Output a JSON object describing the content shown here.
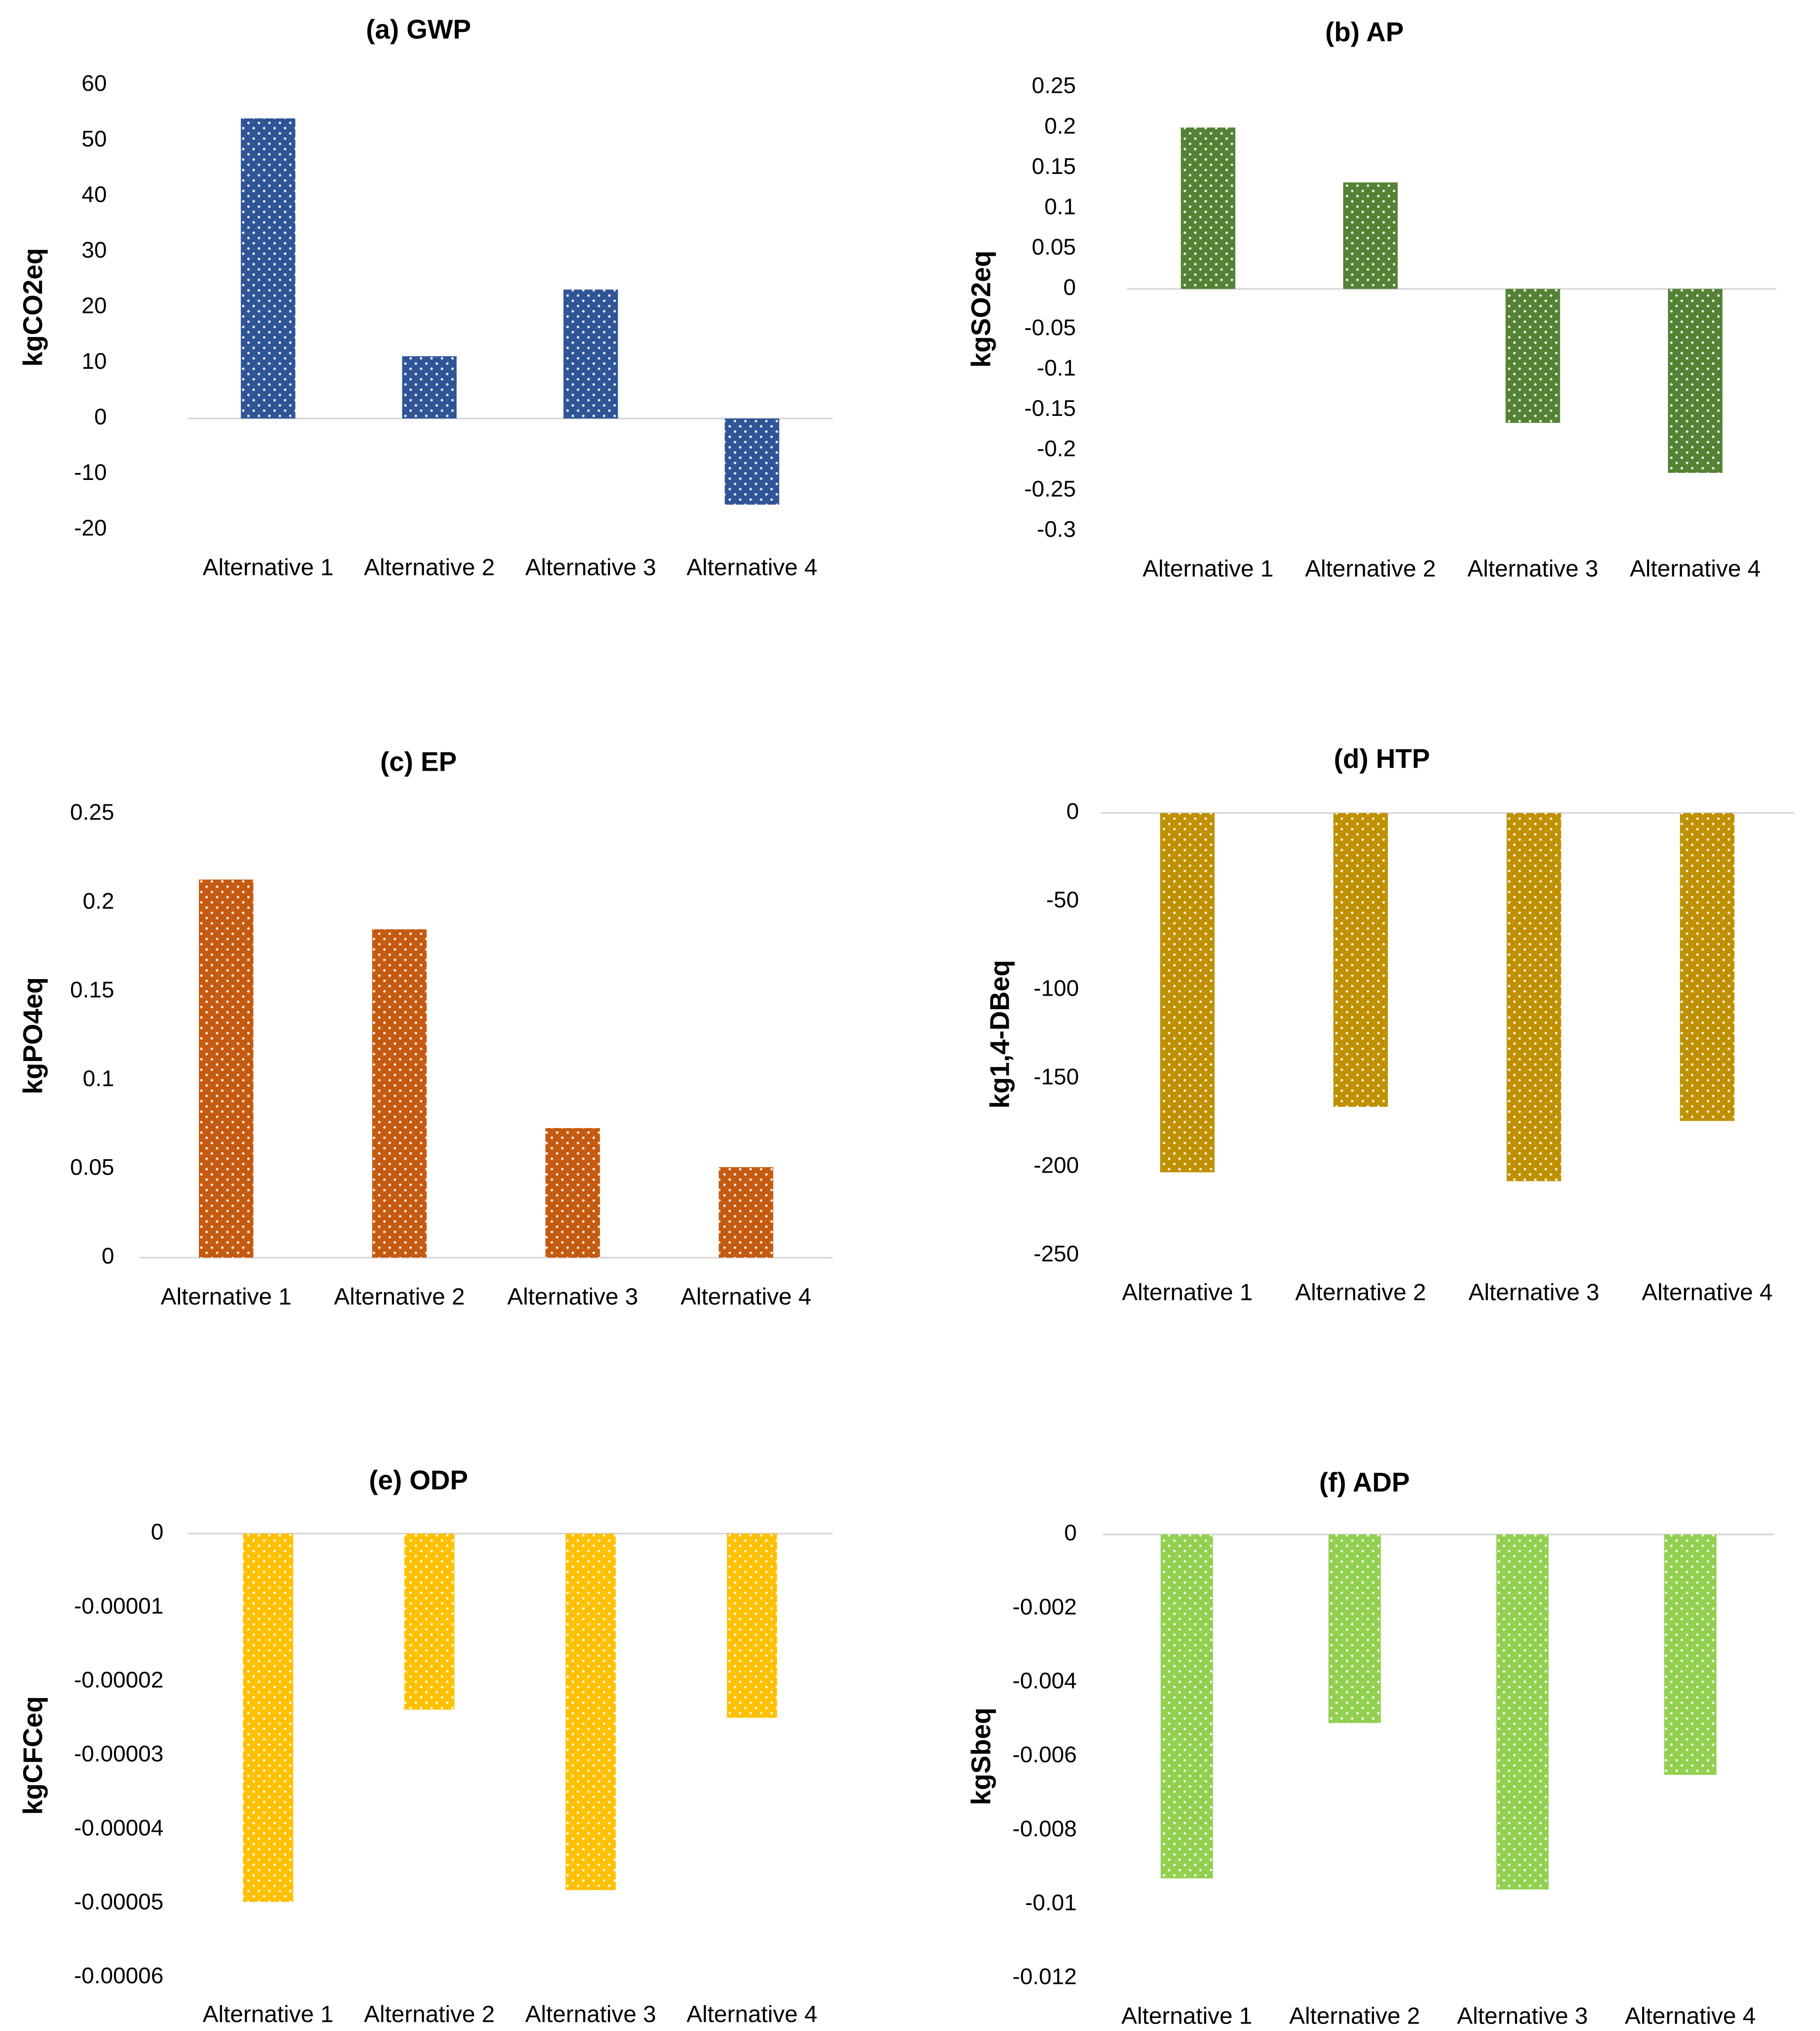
{
  "chart_data": [
    {
      "id": "gwp",
      "type": "bar",
      "title": "(a) GWP",
      "xlabel": "",
      "ylabel": "kgCO2eq",
      "categories": [
        "Alternative 1",
        "Alternative 2",
        "Alternative 3",
        "Alternative 4"
      ],
      "values": [
        54,
        11.2,
        23.2,
        -15.5
      ],
      "ylim": [
        -20,
        60
      ],
      "ticks": [
        60,
        50,
        40,
        30,
        20,
        10,
        0,
        -10,
        -20
      ],
      "tick_labels": [
        "60",
        "50",
        "40",
        "30",
        "20",
        "10",
        "0",
        "-10",
        "-20"
      ],
      "color": "#2f5597",
      "gridlines": false
    },
    {
      "id": "ap",
      "type": "bar",
      "title": "(b) AP",
      "xlabel": "",
      "ylabel": "kgSO2eq",
      "categories": [
        "Alternative 1",
        "Alternative 2",
        "Alternative 3",
        "Alternative 4"
      ],
      "values": [
        0.2,
        0.132,
        -0.166,
        -0.228
      ],
      "ylim": [
        -0.3,
        0.25
      ],
      "ticks": [
        0.25,
        0.2,
        0.15,
        0.1,
        0.05,
        0,
        -0.05,
        -0.1,
        -0.15,
        -0.2,
        -0.25,
        -0.3
      ],
      "tick_labels": [
        "0.25",
        "0.2",
        "0.15",
        "0.1",
        "0.05",
        "0",
        "-0.05",
        "-0.1",
        "-0.15",
        "-0.2",
        "-0.25",
        "-0.3"
      ],
      "color": "#548235",
      "gridlines": false
    },
    {
      "id": "ep",
      "type": "bar",
      "title": "(c) EP",
      "xlabel": "",
      "ylabel": "kgPO4eq",
      "categories": [
        "Alternative 1",
        "Alternative 2",
        "Alternative 3",
        "Alternative 4"
      ],
      "values": [
        0.213,
        0.185,
        0.073,
        0.051
      ],
      "ylim": [
        0,
        0.25
      ],
      "ticks": [
        0.25,
        0.2,
        0.15,
        0.1,
        0.05,
        0
      ],
      "tick_labels": [
        "0.25",
        "0.2",
        "0.15",
        "0.1",
        "0.05",
        "0"
      ],
      "color": "#c55a11",
      "gridlines": false
    },
    {
      "id": "htp",
      "type": "bar",
      "title": "(d) HTP",
      "xlabel": "",
      "ylabel": "kg1,4-DBeq",
      "categories": [
        "Alternative 1",
        "Alternative 2",
        "Alternative 3",
        "Alternative 4"
      ],
      "values": [
        -203,
        -166,
        -208,
        -174
      ],
      "ylim": [
        -250,
        0
      ],
      "ticks": [
        0,
        -50,
        -100,
        -150,
        -200,
        -250
      ],
      "tick_labels": [
        "0",
        "-50",
        "-100",
        "-150",
        "-200",
        "-250"
      ],
      "color": "#bf9000",
      "gridlines": false
    },
    {
      "id": "odp",
      "type": "bar",
      "title": "(e) ODP",
      "xlabel": "",
      "ylabel": "kgCFCeq",
      "categories": [
        "Alternative 1",
        "Alternative 2",
        "Alternative 3",
        "Alternative 4"
      ],
      "values": [
        -4.98e-05,
        -2.38e-05,
        -4.82e-05,
        -2.49e-05
      ],
      "ylim": [
        -6e-05,
        0
      ],
      "ticks": [
        0,
        -1e-05,
        -2e-05,
        -3e-05,
        -4e-05,
        -5e-05,
        -6e-05
      ],
      "tick_labels": [
        "0",
        "-0.00001",
        "-0.00002",
        "-0.00003",
        "-0.00004",
        "-0.00005",
        "-0.00006"
      ],
      "color": "#ffc000",
      "gridlines": false
    },
    {
      "id": "adp",
      "type": "bar",
      "title": "(f) ADP",
      "xlabel": "",
      "ylabel": "kgSbeq",
      "categories": [
        "Alternative 1",
        "Alternative 2",
        "Alternative 3",
        "Alternative 4"
      ],
      "values": [
        -0.0093,
        -0.0051,
        -0.0096,
        -0.0065
      ],
      "ylim": [
        -0.012,
        0
      ],
      "ticks": [
        0,
        -0.002,
        -0.004,
        -0.006,
        -0.008,
        -0.01,
        -0.012
      ],
      "tick_labels": [
        "0",
        "-0.002",
        "-0.004",
        "-0.006",
        "-0.008",
        "-0.01",
        "-0.012"
      ],
      "color": "#92d050",
      "gridlines": false
    }
  ]
}
